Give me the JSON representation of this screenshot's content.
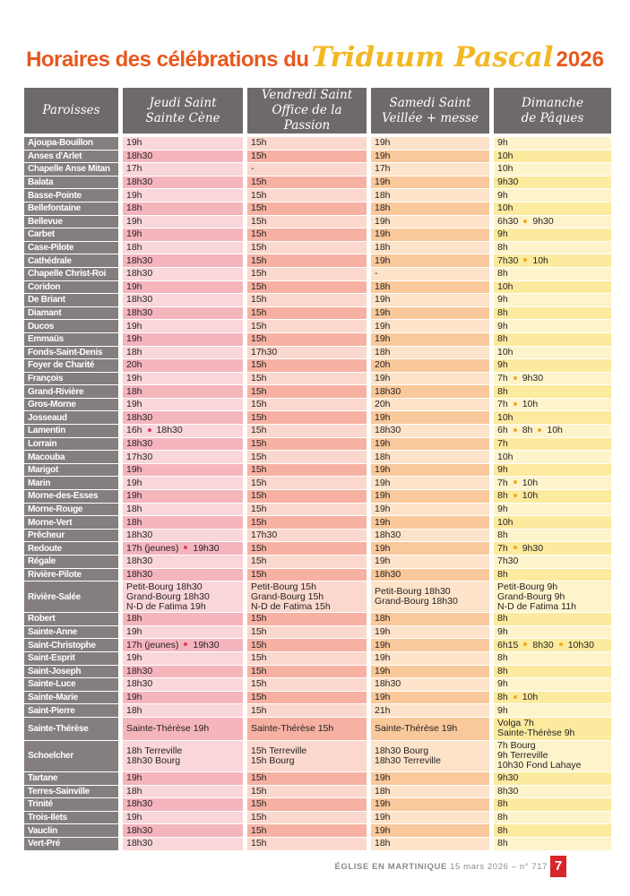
{
  "title": {
    "part1": "Horaires des célébrations du",
    "part2": "Triduum Pascal",
    "part3": "2026"
  },
  "headers": {
    "parishes": "Paroisses",
    "col1_line1": "Jeudi Saint",
    "col1_line2": "Sainte Cène",
    "col2_line1": "Vendredi Saint",
    "col2_line2": "Office de la Passion",
    "col3_line1": "Samedi Saint",
    "col3_line2": "Veillée + messe",
    "col4_line1": "Dimanche",
    "col4_line2": "de Pâques"
  },
  "colors": {
    "title_orange": "#e8581e",
    "title_yellow": "#f2b823",
    "header_gray": "#6f6a6a",
    "parish_gray": "#847e7e",
    "col1_pink": "#f4b5bd",
    "col2_salmon": "#f6b1a3",
    "col3_orange": "#f9c89b",
    "col4_yellow": "#fcea9e",
    "dot_pink": "#d43a6c",
    "dot_orange": "#f2a71b",
    "page_red": "#d8262b"
  },
  "rows": [
    {
      "p": "Ajoupa-Bouillon",
      "c": [
        [
          "19h"
        ],
        [
          "15h"
        ],
        [
          "19h"
        ],
        [
          "9h"
        ]
      ]
    },
    {
      "p": "Anses d'Arlet",
      "c": [
        [
          "18h30"
        ],
        [
          "15h"
        ],
        [
          "19h"
        ],
        [
          "10h"
        ]
      ]
    },
    {
      "p": "Chapelle Anse Mitan",
      "c": [
        [
          "17h"
        ],
        [
          "-"
        ],
        [
          "17h"
        ],
        [
          "10h"
        ]
      ]
    },
    {
      "p": "Balata",
      "c": [
        [
          "18h30"
        ],
        [
          "15h"
        ],
        [
          "19h"
        ],
        [
          "9h30"
        ]
      ]
    },
    {
      "p": "Basse-Pointe",
      "c": [
        [
          "19h"
        ],
        [
          "15h"
        ],
        [
          "18h"
        ],
        [
          "9h"
        ]
      ]
    },
    {
      "p": "Bellefontaine",
      "c": [
        [
          "18h"
        ],
        [
          "15h"
        ],
        [
          "18h"
        ],
        [
          "10h"
        ]
      ]
    },
    {
      "p": "Bellevue",
      "c": [
        [
          "19h"
        ],
        [
          "15h"
        ],
        [
          "19h"
        ],
        [
          "6h30",
          "9h30"
        ]
      ]
    },
    {
      "p": "Carbet",
      "c": [
        [
          "19h"
        ],
        [
          "15h"
        ],
        [
          "19h"
        ],
        [
          "9h"
        ]
      ]
    },
    {
      "p": "Case-Pilote",
      "c": [
        [
          "18h"
        ],
        [
          "15h"
        ],
        [
          "18h"
        ],
        [
          "8h"
        ]
      ]
    },
    {
      "p": "Cathédrale",
      "c": [
        [
          "18h30"
        ],
        [
          "15h"
        ],
        [
          "19h"
        ],
        [
          "7h30",
          "10h"
        ]
      ]
    },
    {
      "p": "Chapelle Christ-Roi",
      "c": [
        [
          "18h30"
        ],
        [
          "15h"
        ],
        [
          "-"
        ],
        [
          "8h"
        ]
      ]
    },
    {
      "p": "Coridon",
      "c": [
        [
          "19h"
        ],
        [
          "15h"
        ],
        [
          "18h"
        ],
        [
          "10h"
        ]
      ]
    },
    {
      "p": "De Briant",
      "c": [
        [
          "18h30"
        ],
        [
          "15h"
        ],
        [
          "19h"
        ],
        [
          "9h"
        ]
      ]
    },
    {
      "p": "Diamant",
      "c": [
        [
          "18h30"
        ],
        [
          "15h"
        ],
        [
          "19h"
        ],
        [
          "8h"
        ]
      ]
    },
    {
      "p": "Ducos",
      "c": [
        [
          "19h"
        ],
        [
          "15h"
        ],
        [
          "19h"
        ],
        [
          "9h"
        ]
      ]
    },
    {
      "p": "Emmaüs",
      "c": [
        [
          "19h"
        ],
        [
          "15h"
        ],
        [
          "19h"
        ],
        [
          "8h"
        ]
      ]
    },
    {
      "p": "Fonds-Saint-Denis",
      "c": [
        [
          "18h"
        ],
        [
          "17h30"
        ],
        [
          "18h"
        ],
        [
          "10h"
        ]
      ]
    },
    {
      "p": "Foyer de Charité",
      "c": [
        [
          "20h"
        ],
        [
          "15h"
        ],
        [
          "20h"
        ],
        [
          "9h"
        ]
      ]
    },
    {
      "p": "François",
      "c": [
        [
          "19h"
        ],
        [
          "15h"
        ],
        [
          "19h"
        ],
        [
          "7h",
          "9h30"
        ]
      ]
    },
    {
      "p": "Grand-Rivière",
      "c": [
        [
          "18h"
        ],
        [
          "15h"
        ],
        [
          "18h30"
        ],
        [
          "8h"
        ]
      ]
    },
    {
      "p": "Gros-Morne",
      "c": [
        [
          "19h"
        ],
        [
          "15h"
        ],
        [
          "20h"
        ],
        [
          "7h",
          "10h"
        ]
      ]
    },
    {
      "p": "Josseaud",
      "c": [
        [
          "18h30"
        ],
        [
          "15h"
        ],
        [
          "19h"
        ],
        [
          "10h"
        ]
      ]
    },
    {
      "p": "Lamentin",
      "c": [
        [
          "16h",
          "18h30"
        ],
        [
          "15h"
        ],
        [
          "18h30"
        ],
        [
          "6h",
          "8h",
          "10h"
        ]
      ]
    },
    {
      "p": "Lorrain",
      "c": [
        [
          "18h30"
        ],
        [
          "15h"
        ],
        [
          "19h"
        ],
        [
          "7h"
        ]
      ]
    },
    {
      "p": "Macouba",
      "c": [
        [
          "17h30"
        ],
        [
          "15h"
        ],
        [
          "18h"
        ],
        [
          "10h"
        ]
      ]
    },
    {
      "p": "Marigot",
      "c": [
        [
          "19h"
        ],
        [
          "15h"
        ],
        [
          "19h"
        ],
        [
          "9h"
        ]
      ]
    },
    {
      "p": "Marin",
      "c": [
        [
          "19h"
        ],
        [
          "15h"
        ],
        [
          "19h"
        ],
        [
          "7h",
          "10h"
        ]
      ]
    },
    {
      "p": "Morne-des-Esses",
      "c": [
        [
          "19h"
        ],
        [
          "15h"
        ],
        [
          "19h"
        ],
        [
          "8h",
          "10h"
        ]
      ]
    },
    {
      "p": "Morne-Rouge",
      "c": [
        [
          "18h"
        ],
        [
          "15h"
        ],
        [
          "19h"
        ],
        [
          "9h"
        ]
      ]
    },
    {
      "p": "Morne-Vert",
      "c": [
        [
          "18h"
        ],
        [
          "15h"
        ],
        [
          "19h"
        ],
        [
          "10h"
        ]
      ]
    },
    {
      "p": "Prêcheur",
      "c": [
        [
          "18h30"
        ],
        [
          "17h30"
        ],
        [
          "18h30"
        ],
        [
          "8h"
        ]
      ]
    },
    {
      "p": "Redoute",
      "c": [
        [
          "17h (jeunes)",
          "19h30"
        ],
        [
          "15h"
        ],
        [
          "19h"
        ],
        [
          "7h",
          "9h30"
        ]
      ]
    },
    {
      "p": "Régale",
      "c": [
        [
          "18h30"
        ],
        [
          "15h"
        ],
        [
          "19h"
        ],
        [
          "7h30"
        ]
      ]
    },
    {
      "p": "Rivière-Pilote",
      "c": [
        [
          "18h30"
        ],
        [
          "15h"
        ],
        [
          "18h30"
        ],
        [
          "8h"
        ]
      ]
    },
    {
      "p": "Rivière-Salée",
      "tall": true,
      "c": [
        [
          "Petit-Bourg 18h30\nGrand-Bourg 18h30\nN-D de Fatima 19h"
        ],
        [
          "Petit-Bourg 15h\nGrand-Bourg 15h\nN-D de Fatima 15h"
        ],
        [
          "Petit-Bourg 18h30\nGrand-Bourg 18h30"
        ],
        [
          "Petit-Bourg 9h\nGrand-Bourg 9h\nN-D de Fatima 11h"
        ]
      ]
    },
    {
      "p": "Robert",
      "c": [
        [
          "18h"
        ],
        [
          "15h"
        ],
        [
          "18h"
        ],
        [
          "8h"
        ]
      ]
    },
    {
      "p": "Sainte-Anne",
      "c": [
        [
          "19h"
        ],
        [
          "15h"
        ],
        [
          "19h"
        ],
        [
          "9h"
        ]
      ]
    },
    {
      "p": "Saint-Christophe",
      "c": [
        [
          "17h (jeunes)",
          "19h30"
        ],
        [
          "15h"
        ],
        [
          "19h"
        ],
        [
          "6h15",
          "8h30",
          "10h30"
        ]
      ]
    },
    {
      "p": "Saint-Esprit",
      "c": [
        [
          "19h"
        ],
        [
          "15h"
        ],
        [
          "19h"
        ],
        [
          "8h"
        ]
      ]
    },
    {
      "p": "Saint-Joseph",
      "c": [
        [
          "18h30"
        ],
        [
          "15h"
        ],
        [
          "19h"
        ],
        [
          "8h"
        ]
      ]
    },
    {
      "p": "Sainte-Luce",
      "c": [
        [
          "18h30"
        ],
        [
          "15h"
        ],
        [
          "18h30"
        ],
        [
          "9h"
        ]
      ]
    },
    {
      "p": "Sainte-Marie",
      "c": [
        [
          "19h"
        ],
        [
          "15h"
        ],
        [
          "19h"
        ],
        [
          "8h",
          "10h"
        ]
      ]
    },
    {
      "p": "Saint-Pierre",
      "c": [
        [
          "18h"
        ],
        [
          "15h"
        ],
        [
          "21h"
        ],
        [
          "9h"
        ]
      ]
    },
    {
      "p": "Sainte-Thérèse",
      "mid": true,
      "c": [
        [
          "Sainte-Thérèse 19h"
        ],
        [
          "Sainte-Thérèse 15h"
        ],
        [
          "Sainte-Thérèse 19h"
        ],
        [
          "Volga 7h\nSainte-Thérèse 9h"
        ]
      ]
    },
    {
      "p": "Schoelcher",
      "tall": true,
      "c": [
        [
          "18h Terreville\n18h30 Bourg"
        ],
        [
          "15h Terreville\n15h Bourg"
        ],
        [
          "18h30 Bourg\n18h30 Terreville"
        ],
        [
          "7h Bourg\n9h Terreville\n10h30 Fond Lahaye"
        ]
      ]
    },
    {
      "p": "Tartane",
      "c": [
        [
          "19h"
        ],
        [
          "15h"
        ],
        [
          "19h"
        ],
        [
          "9h30"
        ]
      ]
    },
    {
      "p": "Terres-Sainville",
      "c": [
        [
          "18h"
        ],
        [
          "15h"
        ],
        [
          "18h"
        ],
        [
          "8h30"
        ]
      ]
    },
    {
      "p": "Trinité",
      "c": [
        [
          "18h30"
        ],
        [
          "15h"
        ],
        [
          "19h"
        ],
        [
          "8h"
        ]
      ]
    },
    {
      "p": "Trois-Ilets",
      "c": [
        [
          "19h"
        ],
        [
          "15h"
        ],
        [
          "19h"
        ],
        [
          "8h"
        ]
      ]
    },
    {
      "p": "Vauclin",
      "c": [
        [
          "18h30"
        ],
        [
          "15h"
        ],
        [
          "19h"
        ],
        [
          "8h"
        ]
      ]
    },
    {
      "p": "Vert-Pré",
      "c": [
        [
          "18h30"
        ],
        [
          "15h"
        ],
        [
          "18h"
        ],
        [
          "8h"
        ]
      ]
    }
  ],
  "footer": {
    "publication": "ÉGLISE EN MARTINIQUE",
    "issue": "15 mars 2026 – n° 717",
    "page": "7"
  }
}
